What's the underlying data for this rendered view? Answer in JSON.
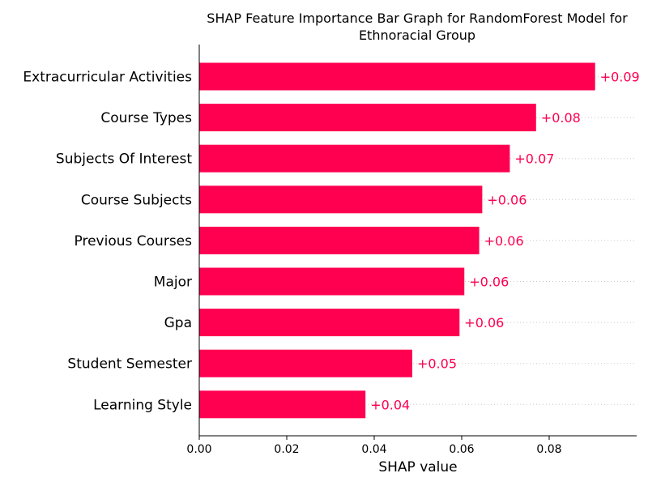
{
  "chart_data": {
    "type": "bar",
    "orientation": "horizontal",
    "title_lines": [
      "SHAP Feature Importance Bar Graph for RandomForest Model for",
      "Ethnoracial Group"
    ],
    "xlabel": "SHAP value",
    "ylabel": "",
    "xlim": [
      0,
      0.1
    ],
    "xticks": [
      "0.00",
      "0.02",
      "0.04",
      "0.06",
      "0.08"
    ],
    "xtick_values": [
      0,
      0.02,
      0.04,
      0.06,
      0.08
    ],
    "grid": "dotted-horizontal",
    "bar_color": "#ff0051",
    "categories": [
      "Extracurricular Activities",
      "Course Types",
      "Subjects Of Interest",
      "Course Subjects",
      "Previous Courses",
      "Major",
      "Gpa",
      "Student Semester",
      "Learning Style"
    ],
    "values": [
      0.0905,
      0.077,
      0.071,
      0.0647,
      0.064,
      0.0606,
      0.0595,
      0.0487,
      0.038
    ],
    "value_labels": [
      "+0.09",
      "+0.08",
      "+0.07",
      "+0.06",
      "+0.06",
      "+0.06",
      "+0.06",
      "+0.05",
      "+0.04"
    ]
  }
}
